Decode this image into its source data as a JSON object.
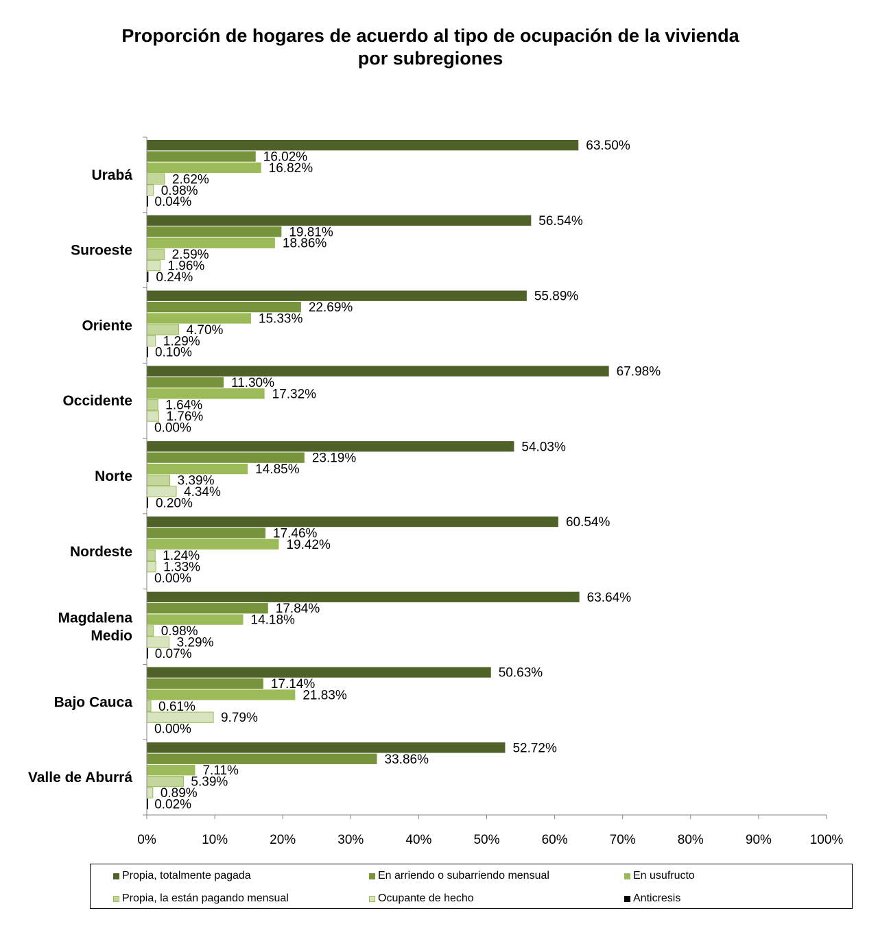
{
  "chart_data": {
    "type": "bar",
    "orientation": "horizontal",
    "title_lines": [
      "Proporción de hogares de acuerdo al tipo de ocupación de la vivienda",
      "por subregiones"
    ],
    "categories": [
      "Urabá",
      "Suroeste",
      "Oriente",
      "Occidente",
      "Norte",
      "Nordeste",
      "Magdalena Medio",
      "Bajo Cauca",
      "Valle de Aburrá"
    ],
    "category_label_lines": [
      [
        "Urabá"
      ],
      [
        "Suroeste"
      ],
      [
        "Oriente"
      ],
      [
        "Occidente"
      ],
      [
        "Norte"
      ],
      [
        "Nordeste"
      ],
      [
        "Magdalena",
        "Medio"
      ],
      [
        "Bajo Cauca"
      ],
      [
        "Valle de Aburrá"
      ]
    ],
    "series": [
      {
        "name": "Propia, totalmente pagada",
        "color": "#4f6228",
        "values": [
          63.5,
          56.54,
          55.89,
          67.98,
          54.03,
          60.54,
          63.64,
          50.63,
          52.72
        ],
        "labels": [
          "63.50%",
          "56.54%",
          "55.89%",
          "67.98%",
          "54.03%",
          "60.54%",
          "63.64%",
          "50.63%",
          "52.72%"
        ]
      },
      {
        "name": "En arriendo o subarriendo mensual",
        "color": "#77933c",
        "values": [
          16.02,
          19.81,
          22.69,
          11.3,
          23.19,
          17.46,
          17.84,
          17.14,
          33.86
        ],
        "labels": [
          "16.02%",
          "19.81%",
          "22.69%",
          "11.30%",
          "23.19%",
          "17.46%",
          "17.84%",
          "17.14%",
          "33.86%"
        ]
      },
      {
        "name": "En usufructo",
        "color": "#9bbb59",
        "values": [
          16.82,
          18.86,
          15.33,
          17.32,
          14.85,
          19.42,
          14.18,
          21.83,
          7.11
        ],
        "labels": [
          "16.82%",
          "18.86%",
          "15.33%",
          "17.32%",
          "14.85%",
          "19.42%",
          "14.18%",
          "21.83%",
          "7.11%"
        ]
      },
      {
        "name": "Propia, la están pagando mensual",
        "color": "#c3d69b",
        "values": [
          2.62,
          2.59,
          4.7,
          1.64,
          3.39,
          1.24,
          0.98,
          0.61,
          5.39
        ],
        "labels": [
          "2.62%",
          "2.59%",
          "4.70%",
          "1.64%",
          "3.39%",
          "1.24%",
          "0.98%",
          "0.61%",
          "5.39%"
        ]
      },
      {
        "name": "Ocupante de hecho",
        "color": "#d7e4bd",
        "values": [
          0.98,
          1.96,
          1.29,
          1.76,
          4.34,
          1.33,
          3.29,
          9.79,
          0.89
        ],
        "labels": [
          "0.98%",
          "1.96%",
          "1.29%",
          "1.76%",
          "4.34%",
          "1.33%",
          "3.29%",
          "9.79%",
          "0.89%"
        ]
      },
      {
        "name": "Anticresis",
        "color": "#000000",
        "values": [
          0.04,
          0.24,
          0.1,
          0.0,
          0.2,
          0.0,
          0.07,
          0.0,
          0.02
        ],
        "labels": [
          "0.04%",
          "0.24%",
          "0.10%",
          "0.00%",
          "0.20%",
          "0.00%",
          "0.07%",
          "0.00%",
          "0.02%"
        ]
      }
    ],
    "xlim": [
      0,
      100
    ],
    "x_ticks": [
      "0%",
      "10%",
      "20%",
      "30%",
      "40%",
      "50%",
      "60%",
      "70%",
      "80%",
      "90%",
      "100%"
    ],
    "grid": false,
    "legend_position": "bottom"
  }
}
